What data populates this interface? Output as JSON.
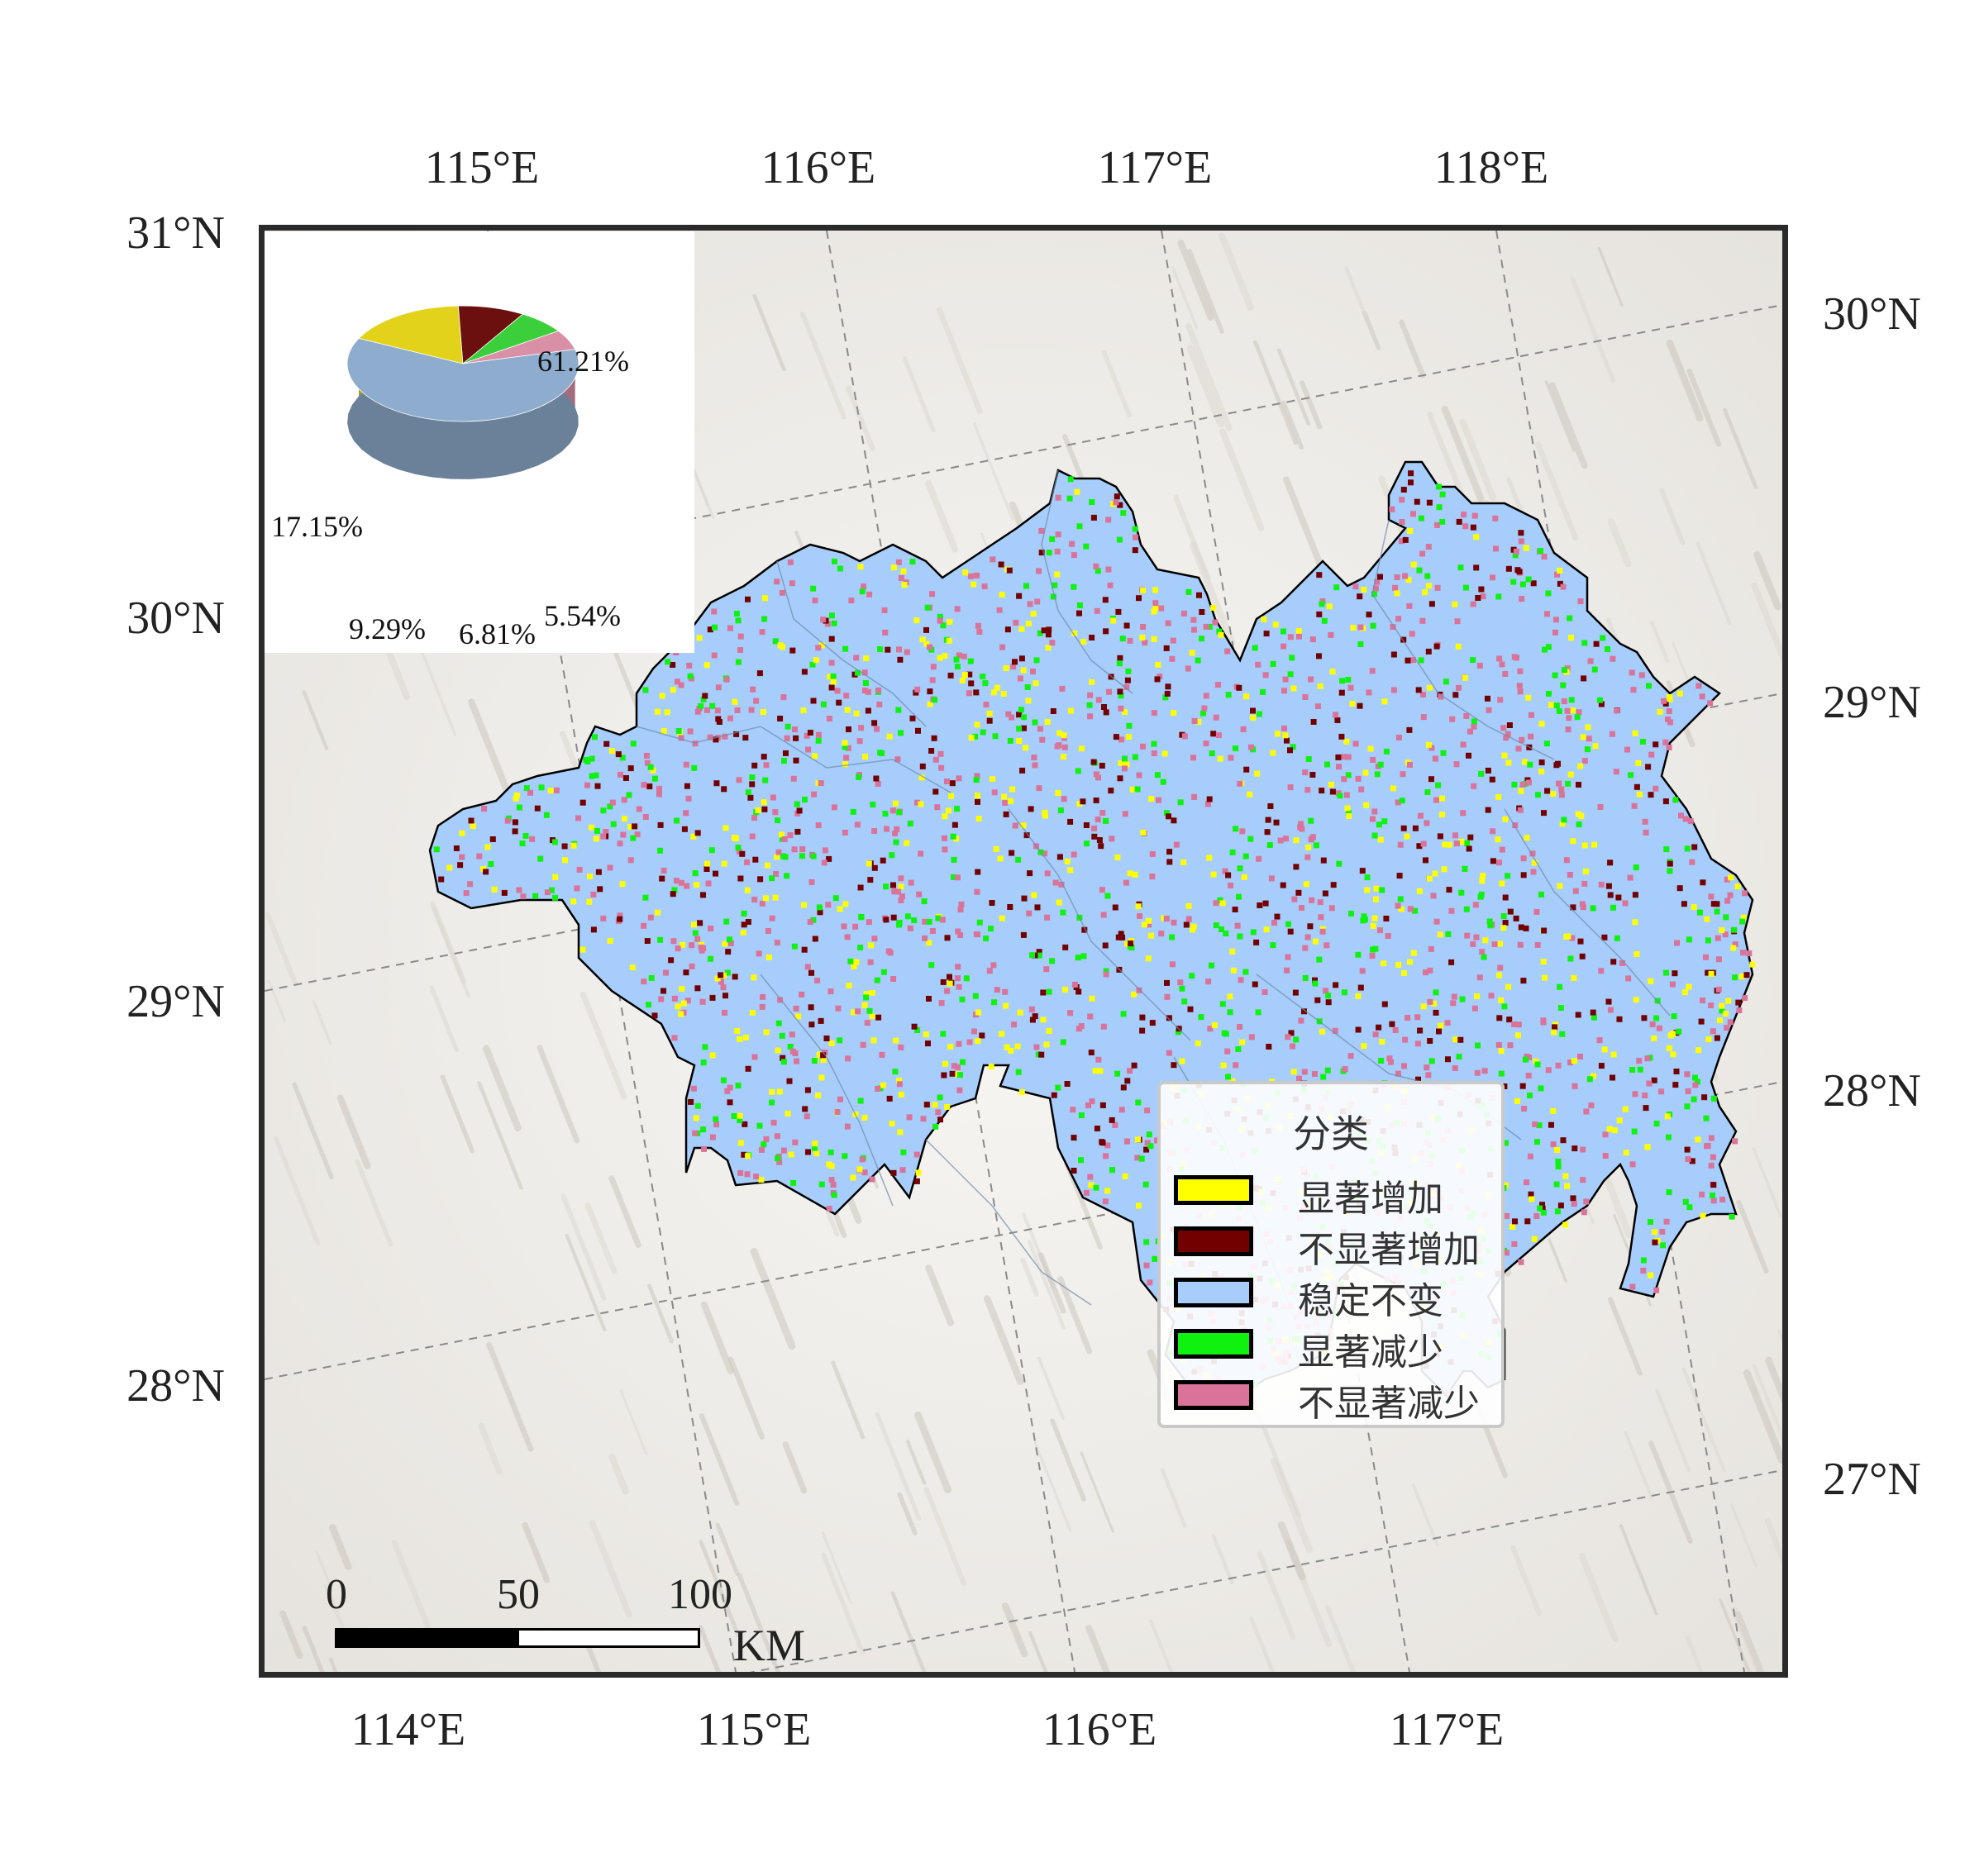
{
  "axes": {
    "top_lon": [
      "115°E",
      "116°E",
      "117°E",
      "118°E"
    ],
    "bottom_lon": [
      "114°E",
      "115°E",
      "116°E",
      "117°E"
    ],
    "left_lat": [
      "31°N",
      "30°N",
      "29°N",
      "28°N"
    ],
    "right_lat": [
      "30°N",
      "29°N",
      "28°N",
      "27°N"
    ]
  },
  "legend": {
    "title": "分类",
    "items": [
      {
        "label": "显著增加",
        "color": "#ffff00"
      },
      {
        "label": "不显著增加",
        "color": "#730000"
      },
      {
        "label": "稳定不变",
        "color": "#a6cdfb"
      },
      {
        "label": "显著减少",
        "color": "#0ff10f"
      },
      {
        "label": "不显著减少",
        "color": "#d97399"
      }
    ]
  },
  "scalebar": {
    "labels": [
      "0",
      "50",
      "100"
    ],
    "unit": "KM"
  },
  "chart_data": {
    "type": "pie",
    "categories": [
      "稳定不变",
      "显著增加",
      "不显著增加",
      "显著减少",
      "不显著减少"
    ],
    "values": [
      61.21,
      17.15,
      9.29,
      6.81,
      5.54
    ],
    "value_labels": [
      "61.21%",
      "17.15%",
      "9.29%",
      "6.81%",
      "5.54%"
    ],
    "colors": [
      "#8eaccd",
      "#e3d21a",
      "#6b0f0f",
      "#3ccf3c",
      "#d98fa6"
    ]
  },
  "colors": {
    "frame": "#2a2a2a",
    "outline": "#000000",
    "stable": "#a6cdfb"
  }
}
